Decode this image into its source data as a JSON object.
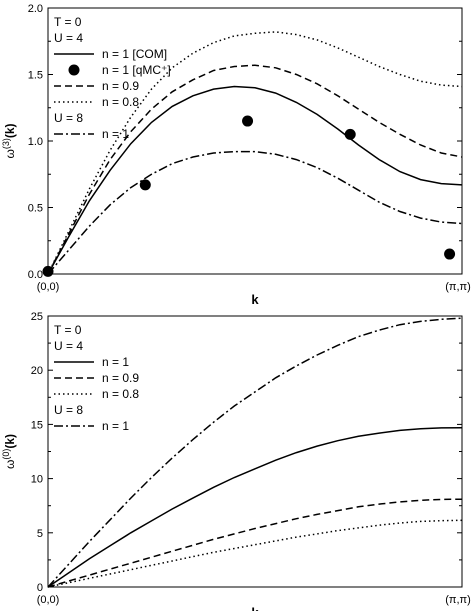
{
  "chart_data": [
    {
      "type": "line",
      "xlabel": "k",
      "ylabel_main": "ω",
      "ylabel_sup": "(3)",
      "ylabel_tail": "(k)",
      "x_ticks": [
        "(0,0)",
        "(π,π)"
      ],
      "xlim": [
        0,
        1
      ],
      "ylim": [
        0,
        2.0
      ],
      "y_ticks": [
        0.0,
        0.5,
        1.0,
        1.5,
        2.0
      ],
      "y_tick_labels": [
        "0.0",
        "0.5",
        "1.0",
        "1.5",
        "2.0"
      ],
      "legend_header_1": "T = 0",
      "legend_header_2": "U = 4",
      "legend_header_3": "U = 8",
      "series": [
        {
          "name": "n = 1 [COM]",
          "style": "solid",
          "x": [
            0,
            0.05,
            0.1,
            0.15,
            0.2,
            0.25,
            0.3,
            0.35,
            0.4,
            0.45,
            0.5,
            0.55,
            0.6,
            0.65,
            0.7,
            0.75,
            0.8,
            0.85,
            0.9,
            0.95,
            1.0
          ],
          "values": [
            0,
            0.28,
            0.55,
            0.78,
            0.98,
            1.14,
            1.26,
            1.34,
            1.39,
            1.41,
            1.4,
            1.36,
            1.29,
            1.2,
            1.09,
            0.97,
            0.86,
            0.77,
            0.71,
            0.68,
            0.67
          ]
        },
        {
          "name": "n = 1 [qMC⁺]",
          "style": "markers",
          "x": [
            0.0,
            0.235,
            0.482,
            0.73,
            0.97
          ],
          "values": [
            0.02,
            0.67,
            1.15,
            1.05,
            0.15
          ]
        },
        {
          "name": "n = 0.9",
          "style": "dashed",
          "x": [
            0,
            0.05,
            0.1,
            0.15,
            0.2,
            0.25,
            0.3,
            0.35,
            0.4,
            0.45,
            0.5,
            0.55,
            0.6,
            0.65,
            0.7,
            0.75,
            0.8,
            0.85,
            0.9,
            0.95,
            1.0
          ],
          "values": [
            0,
            0.3,
            0.6,
            0.86,
            1.07,
            1.24,
            1.37,
            1.46,
            1.53,
            1.56,
            1.57,
            1.55,
            1.5,
            1.43,
            1.34,
            1.24,
            1.14,
            1.05,
            0.97,
            0.91,
            0.88
          ]
        },
        {
          "name": "n = 0.8",
          "style": "dotted",
          "x": [
            0,
            0.05,
            0.1,
            0.15,
            0.2,
            0.25,
            0.3,
            0.35,
            0.4,
            0.45,
            0.5,
            0.55,
            0.6,
            0.65,
            0.7,
            0.75,
            0.8,
            0.85,
            0.9,
            0.95,
            1.0
          ],
          "values": [
            0,
            0.32,
            0.64,
            0.93,
            1.18,
            1.39,
            1.55,
            1.66,
            1.74,
            1.79,
            1.81,
            1.82,
            1.8,
            1.76,
            1.7,
            1.63,
            1.56,
            1.5,
            1.45,
            1.42,
            1.41
          ]
        },
        {
          "name": "n = 1",
          "style": "dashdot",
          "x": [
            0,
            0.05,
            0.1,
            0.15,
            0.2,
            0.25,
            0.3,
            0.35,
            0.4,
            0.45,
            0.5,
            0.55,
            0.6,
            0.65,
            0.7,
            0.75,
            0.8,
            0.85,
            0.9,
            0.95,
            1.0
          ],
          "values": [
            0,
            0.18,
            0.36,
            0.52,
            0.65,
            0.75,
            0.83,
            0.88,
            0.91,
            0.92,
            0.92,
            0.9,
            0.86,
            0.8,
            0.72,
            0.63,
            0.54,
            0.47,
            0.42,
            0.39,
            0.38
          ]
        }
      ]
    },
    {
      "type": "line",
      "xlabel": "k",
      "ylabel_main": "ω",
      "ylabel_sup": "(0)",
      "ylabel_tail": "(k)",
      "x_ticks": [
        "(0,0)",
        "(π,π)"
      ],
      "xlim": [
        0,
        1
      ],
      "ylim": [
        0,
        25
      ],
      "y_ticks": [
        0,
        5,
        10,
        15,
        20,
        25
      ],
      "y_tick_labels": [
        "0",
        "5",
        "10",
        "15",
        "20",
        "25"
      ],
      "legend_header_1": "T = 0",
      "legend_header_2": "U = 4",
      "legend_header_3": "U = 8",
      "series": [
        {
          "name": "n = 1",
          "style": "solid",
          "x": [
            0,
            0.05,
            0.1,
            0.15,
            0.2,
            0.25,
            0.3,
            0.35,
            0.4,
            0.45,
            0.5,
            0.55,
            0.6,
            0.65,
            0.7,
            0.75,
            0.8,
            0.85,
            0.9,
            0.95,
            1.0
          ],
          "values": [
            0,
            1.3,
            2.6,
            3.8,
            5.0,
            6.1,
            7.2,
            8.2,
            9.2,
            10.1,
            10.9,
            11.7,
            12.4,
            13.0,
            13.5,
            13.9,
            14.2,
            14.45,
            14.6,
            14.68,
            14.7
          ]
        },
        {
          "name": "n = 0.9",
          "style": "dashed",
          "x": [
            0,
            0.05,
            0.1,
            0.15,
            0.2,
            0.25,
            0.3,
            0.35,
            0.4,
            0.45,
            0.5,
            0.55,
            0.6,
            0.65,
            0.7,
            0.75,
            0.8,
            0.85,
            0.9,
            0.95,
            1.0
          ],
          "values": [
            0,
            0.55,
            1.1,
            1.65,
            2.2,
            2.75,
            3.3,
            3.85,
            4.4,
            4.9,
            5.4,
            5.85,
            6.3,
            6.7,
            7.05,
            7.4,
            7.65,
            7.85,
            8.0,
            8.08,
            8.1
          ]
        },
        {
          "name": "n = 0.8",
          "style": "dotted",
          "x": [
            0,
            0.05,
            0.1,
            0.15,
            0.2,
            0.25,
            0.3,
            0.35,
            0.4,
            0.45,
            0.5,
            0.55,
            0.6,
            0.65,
            0.7,
            0.75,
            0.8,
            0.85,
            0.9,
            0.95,
            1.0
          ],
          "values": [
            0,
            0.4,
            0.8,
            1.2,
            1.6,
            2.0,
            2.4,
            2.8,
            3.2,
            3.55,
            3.9,
            4.25,
            4.6,
            4.9,
            5.2,
            5.45,
            5.7,
            5.9,
            6.05,
            6.12,
            6.15
          ]
        },
        {
          "name": "n = 1",
          "style": "dashdot",
          "x": [
            0,
            0.05,
            0.1,
            0.15,
            0.2,
            0.25,
            0.3,
            0.35,
            0.4,
            0.45,
            0.5,
            0.55,
            0.6,
            0.65,
            0.7,
            0.75,
            0.8,
            0.85,
            0.9,
            0.95,
            1.0
          ],
          "values": [
            0,
            2.1,
            4.2,
            6.2,
            8.2,
            10.1,
            11.9,
            13.6,
            15.2,
            16.7,
            18.0,
            19.3,
            20.4,
            21.4,
            22.3,
            23.1,
            23.7,
            24.2,
            24.5,
            24.7,
            24.8
          ]
        }
      ]
    }
  ]
}
